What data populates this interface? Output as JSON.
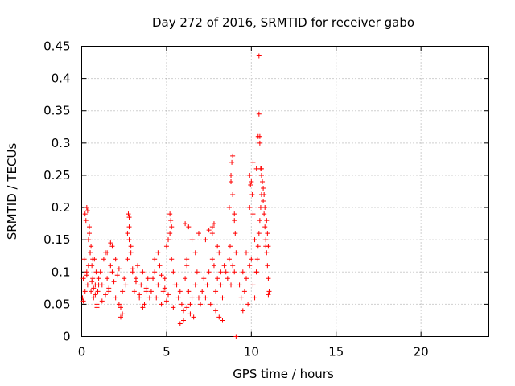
{
  "chart_data": {
    "type": "scatter",
    "title": "Day 272 of 2016, SRMTID for receiver gabo",
    "xlabel": "GPS time / hours",
    "ylabel": "SRMTID / TECUs",
    "xlim": [
      0,
      24
    ],
    "ylim": [
      0,
      0.45
    ],
    "xticks": [
      "0",
      "5",
      "10",
      "15",
      "20"
    ],
    "yticks": [
      "0",
      "0.05",
      "0.1",
      "0.15",
      "0.2",
      "0.25",
      "0.3",
      "0.35",
      "0.4",
      "0.45"
    ],
    "grid": true,
    "marker": "+",
    "color": "#ff0000",
    "series": [
      {
        "x": [
          0.05,
          0.1,
          0.15,
          0.2,
          0.25,
          0.3,
          0.35,
          0.4,
          0.45,
          0.5,
          0.55,
          0.6,
          0.65,
          0.7,
          0.75,
          0.8,
          0.85,
          0.9,
          0.95,
          1.0,
          0.1,
          0.2,
          0.3,
          0.4,
          0.5,
          0.6,
          0.7,
          0.8,
          0.9,
          1.0,
          0.3,
          0.35,
          0.45,
          0.55,
          0.65,
          1.1,
          1.2,
          1.3,
          1.4,
          1.5,
          1.6,
          1.7,
          1.8,
          1.9,
          2.0,
          2.1,
          2.2,
          2.3,
          2.4,
          2.5,
          1.2,
          1.4,
          1.6,
          1.8,
          2.0,
          2.2,
          2.4,
          1.5,
          1.7,
          2.3,
          2.6,
          2.7,
          2.8,
          2.9,
          3.0,
          3.1,
          3.2,
          3.3,
          3.4,
          3.5,
          3.6,
          3.7,
          3.8,
          3.9,
          4.0,
          2.7,
          2.8,
          2.9,
          3.0,
          3.2,
          3.4,
          3.6,
          3.8,
          2.75,
          2.8,
          4.1,
          4.2,
          4.3,
          4.4,
          4.5,
          4.6,
          4.7,
          4.8,
          4.9,
          5.0,
          5.1,
          5.2,
          5.3,
          5.4,
          5.5,
          4.3,
          4.5,
          4.7,
          4.9,
          5.1,
          5.2,
          5.25,
          5.3,
          5.0,
          5.4,
          5.6,
          5.7,
          5.8,
          5.9,
          6.0,
          6.1,
          6.2,
          6.3,
          6.4,
          6.5,
          6.6,
          6.7,
          6.8,
          6.9,
          7.0,
          5.8,
          6.0,
          6.2,
          6.3,
          6.5,
          6.7,
          6.9,
          6.1,
          6.2,
          6.4,
          7.1,
          7.2,
          7.3,
          7.4,
          7.5,
          7.6,
          7.7,
          7.8,
          7.9,
          8.0,
          8.1,
          8.2,
          8.3,
          8.4,
          8.5,
          7.3,
          7.5,
          7.7,
          7.9,
          8.1,
          8.3,
          7.7,
          7.8,
          8.0,
          8.2,
          8.6,
          8.7,
          8.8,
          8.9,
          9.0,
          8.7,
          8.8,
          8.9,
          9.0,
          8.75,
          8.8,
          8.85,
          8.9,
          9.0,
          9.05,
          9.1,
          9.1,
          9.3,
          9.4,
          9.5,
          9.6,
          9.7,
          9.8,
          9.9,
          10.0,
          10.1,
          10.2,
          10.3,
          9.5,
          9.7,
          9.9,
          10.1,
          10.3,
          9.9,
          9.95,
          10.0,
          10.05,
          10.1,
          10.2,
          10.3,
          10.35,
          10.4,
          10.45,
          10.5,
          10.55,
          10.6,
          10.65,
          10.7,
          10.75,
          10.8,
          10.85,
          10.9,
          10.95,
          11.0,
          11.05,
          10.4,
          10.45,
          10.5,
          10.55,
          10.6,
          10.7,
          10.8,
          10.9,
          10.95,
          11.0,
          10.45,
          10.5,
          10.6,
          10.75,
          10.85,
          11.0
        ],
        "y": [
          0.06,
          0.09,
          0.12,
          0.19,
          0.18,
          0.1,
          0.08,
          0.15,
          0.16,
          0.13,
          0.07,
          0.11,
          0.09,
          0.06,
          0.12,
          0.08,
          0.1,
          0.05,
          0.07,
          0.09,
          0.055,
          0.07,
          0.095,
          0.11,
          0.13,
          0.085,
          0.075,
          0.065,
          0.045,
          0.08,
          0.2,
          0.195,
          0.17,
          0.14,
          0.12,
          0.1,
          0.08,
          0.12,
          0.13,
          0.09,
          0.07,
          0.11,
          0.14,
          0.085,
          0.06,
          0.095,
          0.105,
          0.045,
          0.07,
          0.09,
          0.055,
          0.065,
          0.075,
          0.1,
          0.12,
          0.05,
          0.035,
          0.13,
          0.145,
          0.03,
          0.08,
          0.12,
          0.15,
          0.14,
          0.1,
          0.07,
          0.09,
          0.11,
          0.06,
          0.08,
          0.1,
          0.05,
          0.07,
          0.09,
          0.06,
          0.16,
          0.17,
          0.13,
          0.105,
          0.085,
          0.065,
          0.045,
          0.075,
          0.19,
          0.185,
          0.07,
          0.09,
          0.1,
          0.06,
          0.08,
          0.11,
          0.05,
          0.07,
          0.09,
          0.14,
          0.15,
          0.16,
          0.12,
          0.1,
          0.08,
          0.12,
          0.13,
          0.095,
          0.075,
          0.065,
          0.19,
          0.18,
          0.17,
          0.055,
          0.045,
          0.08,
          0.06,
          0.07,
          0.05,
          0.04,
          0.09,
          0.11,
          0.07,
          0.05,
          0.06,
          0.03,
          0.08,
          0.1,
          0.06,
          0.05,
          0.02,
          0.025,
          0.045,
          0.17,
          0.15,
          0.13,
          0.16,
          0.175,
          0.12,
          0.035,
          0.07,
          0.09,
          0.06,
          0.08,
          0.1,
          0.05,
          0.12,
          0.11,
          0.07,
          0.09,
          0.13,
          0.08,
          0.06,
          0.11,
          0.1,
          0.15,
          0.165,
          0.17,
          0.04,
          0.03,
          0.025,
          0.16,
          0.175,
          0.14,
          0.1,
          0.09,
          0.12,
          0.08,
          0.11,
          0.1,
          0.2,
          0.24,
          0.28,
          0.19,
          0.14,
          0.25,
          0.27,
          0.22,
          0.18,
          0.16,
          0.13,
          0.0,
          0.08,
          0.06,
          0.1,
          0.07,
          0.09,
          0.05,
          0.11,
          0.12,
          0.08,
          0.06,
          0.1,
          0.04,
          0.13,
          0.25,
          0.27,
          0.26,
          0.2,
          0.235,
          0.24,
          0.22,
          0.19,
          0.15,
          0.1,
          0.12,
          0.14,
          0.16,
          0.18,
          0.2,
          0.22,
          0.24,
          0.21,
          0.19,
          0.17,
          0.15,
          0.13,
          0.11,
          0.09,
          0.07,
          0.31,
          0.345,
          0.3,
          0.26,
          0.25,
          0.23,
          0.2,
          0.18,
          0.16,
          0.14,
          0.435,
          0.31,
          0.26,
          0.22,
          0.14,
          0.065
        ]
      }
    ]
  }
}
